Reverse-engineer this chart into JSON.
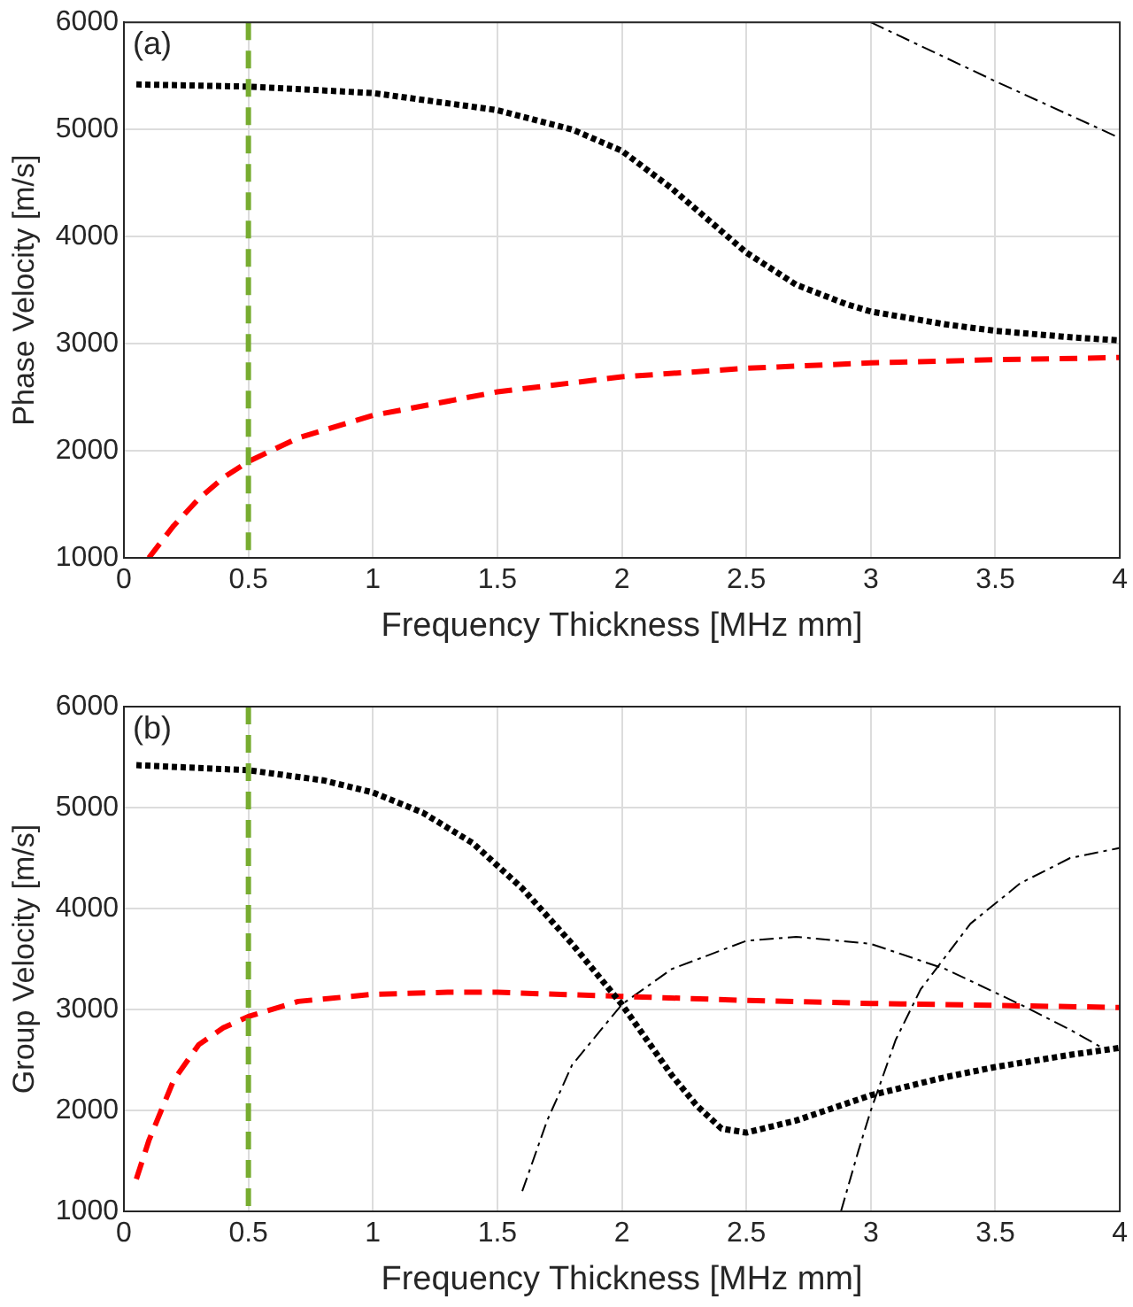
{
  "chart_data": [
    {
      "type": "line",
      "xlabel": "Frequency Thickness [MHz mm]",
      "ylabel": "Phase Velocity [m/s]",
      "annotations": [
        "(a)"
      ],
      "xlim": [
        0,
        4
      ],
      "ylim": [
        1000,
        6000
      ],
      "xticks": [
        0,
        0.5,
        1,
        1.5,
        2,
        2.5,
        3,
        3.5,
        4
      ],
      "yticks": [
        1000,
        2000,
        3000,
        4000,
        5000,
        6000
      ],
      "grid": true,
      "legend": false,
      "marker": "none",
      "ref_lines": [
        {
          "axis": "x",
          "value": 0.5,
          "color": "#77ac30",
          "line_style": "dashed"
        }
      ],
      "series": [
        {
          "color": "#000000",
          "line_style": "dotted",
          "x": [
            0.05,
            0.5,
            1.0,
            1.5,
            1.8,
            2.0,
            2.2,
            2.4,
            2.5,
            2.7,
            2.9,
            3.0,
            3.3,
            3.5,
            3.8,
            4.0
          ],
          "values": [
            5420,
            5400,
            5340,
            5180,
            5000,
            4800,
            4450,
            4050,
            3850,
            3550,
            3370,
            3300,
            3180,
            3120,
            3060,
            3030
          ]
        },
        {
          "color": "#ff0000",
          "line_style": "dashed",
          "x": [
            0.1,
            0.2,
            0.3,
            0.4,
            0.5,
            0.7,
            1.0,
            1.5,
            2.0,
            2.5,
            3.0,
            3.5,
            4.0
          ],
          "values": [
            1000,
            1300,
            1550,
            1750,
            1900,
            2120,
            2330,
            2550,
            2690,
            2770,
            2820,
            2850,
            2870
          ]
        },
        {
          "color": "#000000",
          "line_style": "dashdot",
          "x": [
            3.0,
            3.5,
            4.0
          ],
          "values": [
            6000,
            5450,
            4920
          ]
        }
      ]
    },
    {
      "type": "line",
      "xlabel": "Frequency Thickness [MHz mm]",
      "ylabel": "Group Velocity [m/s]",
      "annotations": [
        "(b)"
      ],
      "xlim": [
        0,
        4
      ],
      "ylim": [
        1000,
        6000
      ],
      "xticks": [
        0,
        0.5,
        1,
        1.5,
        2,
        2.5,
        3,
        3.5,
        4
      ],
      "yticks": [
        1000,
        2000,
        3000,
        4000,
        5000,
        6000
      ],
      "grid": true,
      "legend": false,
      "marker": "none",
      "ref_lines": [
        {
          "axis": "x",
          "value": 0.5,
          "color": "#77ac30",
          "line_style": "dashed"
        }
      ],
      "series": [
        {
          "color": "#000000",
          "line_style": "dotted",
          "x": [
            0.05,
            0.5,
            0.8,
            1.0,
            1.2,
            1.4,
            1.6,
            1.8,
            2.0,
            2.1,
            2.2,
            2.3,
            2.4,
            2.5,
            2.7,
            3.0,
            3.3,
            3.5,
            3.8,
            4.0
          ],
          "values": [
            5420,
            5370,
            5270,
            5150,
            4950,
            4650,
            4200,
            3650,
            3050,
            2700,
            2350,
            2050,
            1820,
            1780,
            1900,
            2150,
            2330,
            2430,
            2550,
            2620
          ]
        },
        {
          "color": "#ff0000",
          "line_style": "dashed",
          "x": [
            0.05,
            0.1,
            0.2,
            0.3,
            0.4,
            0.5,
            0.7,
            1.0,
            1.3,
            1.5,
            2.0,
            2.5,
            3.0,
            3.5,
            4.0
          ],
          "values": [
            1320,
            1700,
            2300,
            2650,
            2820,
            2930,
            3080,
            3150,
            3170,
            3170,
            3130,
            3090,
            3060,
            3040,
            3020
          ]
        },
        {
          "color": "#000000",
          "line_style": "dashdot",
          "x": [
            1.6,
            1.7,
            1.8,
            2.0,
            2.2,
            2.5,
            2.7,
            3.0,
            3.3,
            3.6,
            3.8,
            3.93
          ],
          "values": [
            1200,
            1900,
            2450,
            3050,
            3400,
            3680,
            3720,
            3650,
            3400,
            3050,
            2800,
            2620
          ]
        },
        {
          "color": "#000000",
          "line_style": "dashdot",
          "x": [
            2.88,
            2.95,
            3.0,
            3.1,
            3.2,
            3.4,
            3.6,
            3.8,
            4.0
          ],
          "values": [
            1000,
            1600,
            2000,
            2700,
            3200,
            3850,
            4250,
            4500,
            4600
          ]
        }
      ]
    }
  ]
}
